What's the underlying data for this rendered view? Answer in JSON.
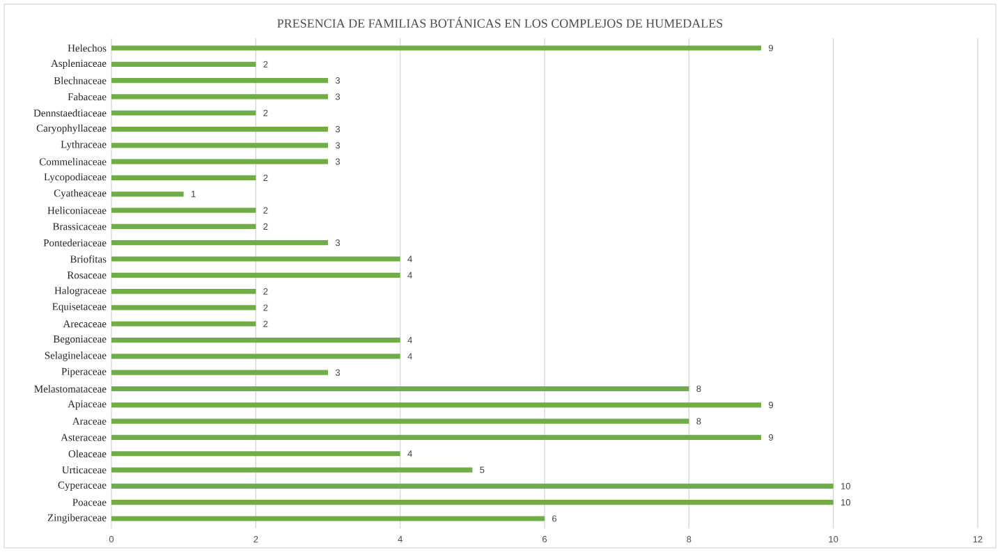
{
  "chart_data": {
    "type": "bar",
    "orientation": "horizontal",
    "title": "PRESENCIA DE FAMILIAS BOTÁNICAS EN LOS COMPLEJOS DE HUMEDALES",
    "categories": [
      "Helechos",
      "Aspleniaceae",
      "Blechnaceae",
      "Fabaceae",
      "Dennstaedtiaceae",
      "Caryophyllaceae",
      "Lythraceae",
      "Commelinaceae",
      "Lycopodiaceae",
      "Cyatheaceae",
      "Heliconiaceae",
      "Brassicaceae",
      "Pontederiaceae",
      "Briofitas",
      "Rosaceae",
      "Halograceae",
      "Equisetaceae",
      "Arecaceae",
      "Begoniaceae",
      "Selaginelaceae",
      "Piperaceae",
      "Melastomataceae",
      "Apiaceae",
      "Araceae",
      "Asteraceae",
      "Oleaceae",
      "Urticaceae",
      "Cyperaceae",
      "Poaceae",
      "Zingiberaceae"
    ],
    "values": [
      9,
      2,
      3,
      3,
      2,
      3,
      3,
      3,
      2,
      1,
      2,
      2,
      3,
      4,
      4,
      2,
      2,
      2,
      4,
      4,
      3,
      8,
      9,
      8,
      9,
      4,
      5,
      10,
      10,
      6
    ],
    "color": "#70ad47",
    "xlim": [
      0,
      12
    ],
    "xticks": [
      0,
      2,
      4,
      6,
      8,
      10,
      12
    ],
    "grid": "x",
    "data_labels": true
  }
}
